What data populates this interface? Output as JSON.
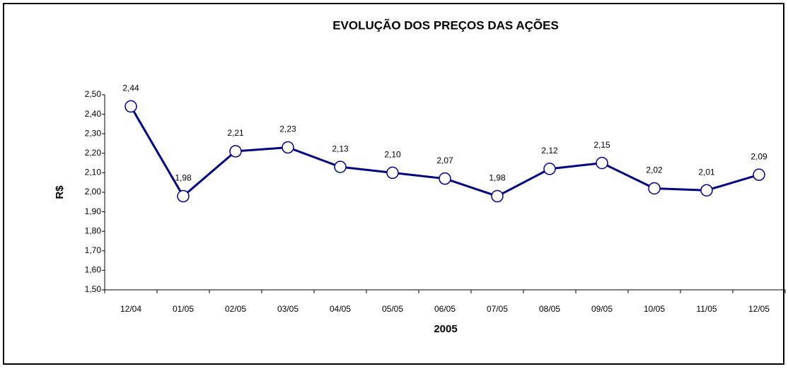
{
  "chart_data": {
    "type": "line",
    "title": "EVOLUÇÃO DOS PREÇOS DAS AÇÕES",
    "ylabel": "R$",
    "xlabel": "2005",
    "categories": [
      "12/04",
      "01/05",
      "02/05",
      "03/05",
      "04/05",
      "05/05",
      "06/05",
      "07/05",
      "08/05",
      "09/05",
      "10/05",
      "11/05",
      "12/05"
    ],
    "series": [
      {
        "name": "R$",
        "color": "#000080",
        "values": [
          2.44,
          1.98,
          2.21,
          2.23,
          2.13,
          2.1,
          2.07,
          1.98,
          2.12,
          2.15,
          2.02,
          2.01,
          2.09
        ],
        "value_labels": [
          "2,44",
          "1,98",
          "2,21",
          "2,23",
          "2,13",
          "2,10",
          "2,07",
          "1,98",
          "2,12",
          "2,15",
          "2,02",
          "2,01",
          "2,09"
        ]
      }
    ],
    "ylim": [
      1.5,
      2.5
    ],
    "yticks": [
      {
        "value": 1.5,
        "label": "1,50"
      },
      {
        "value": 1.6,
        "label": "1,60"
      },
      {
        "value": 1.7,
        "label": "1,70"
      },
      {
        "value": 1.8,
        "label": "1,80"
      },
      {
        "value": 1.9,
        "label": "1,90"
      },
      {
        "value": 2.0,
        "label": "2,00"
      },
      {
        "value": 2.1,
        "label": "2,10"
      },
      {
        "value": 2.2,
        "label": "2,20"
      },
      {
        "value": 2.3,
        "label": "2,30"
      },
      {
        "value": 2.4,
        "label": "2,40"
      },
      {
        "value": 2.5,
        "label": "2,50"
      }
    ],
    "grid": false
  }
}
